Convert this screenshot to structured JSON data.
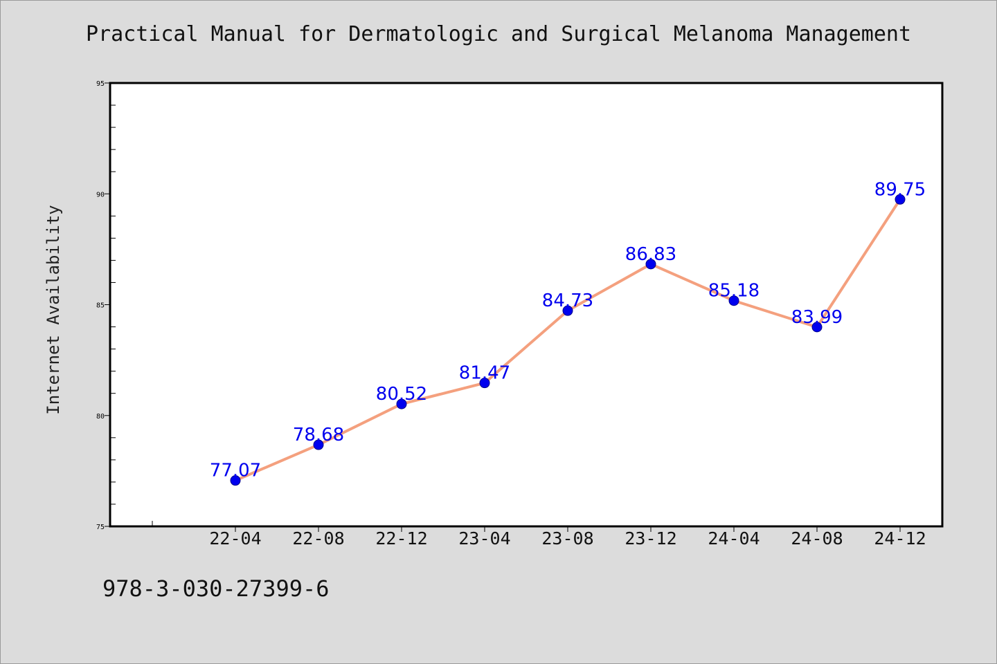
{
  "chart_data": {
    "type": "line",
    "title": "Practical Manual for Dermatologic and Surgical Melanoma Management",
    "xlabel": "",
    "ylabel": "Internet Availability",
    "categories": [
      "22-04",
      "22-08",
      "22-12",
      "23-04",
      "23-08",
      "23-12",
      "24-04",
      "24-08",
      "24-12"
    ],
    "series": [
      {
        "values": [
          77.07,
          78.68,
          80.52,
          81.47,
          84.73,
          86.83,
          85.18,
          83.99,
          89.75
        ],
        "labels": [
          "77.07",
          "78.68",
          "80.52",
          "81.47",
          "84.73",
          "86.83",
          "85.18",
          "83.99",
          "89.75"
        ]
      }
    ],
    "ylim": [
      75,
      95
    ],
    "yticks": [
      "75",
      "80",
      "85",
      "90",
      "95"
    ],
    "grid": false,
    "colors": {
      "line": "#f4a07e",
      "marker": "#0000ee",
      "label": "#0000ee"
    }
  },
  "footer": {
    "code": "978-3-030-27399-6"
  }
}
